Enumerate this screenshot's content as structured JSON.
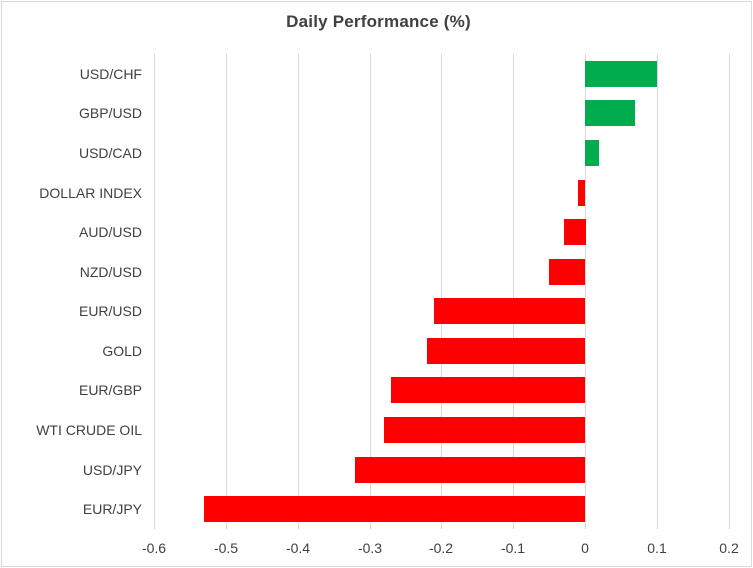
{
  "chart_data": {
    "type": "bar",
    "orientation": "horizontal",
    "title": "Daily Performance (%)",
    "categories": [
      "USD/CHF",
      "GBP/USD",
      "USD/CAD",
      "DOLLAR INDEX",
      "AUD/USD",
      "NZD/USD",
      "EUR/USD",
      "GOLD",
      "EUR/GBP",
      "WTI CRUDE OIL",
      "USD/JPY",
      "EUR/JPY"
    ],
    "values": [
      0.1,
      0.07,
      0.02,
      -0.01,
      -0.03,
      -0.05,
      -0.21,
      -0.22,
      -0.27,
      -0.28,
      -0.32,
      -0.53
    ],
    "xlim": [
      -0.6,
      0.2
    ],
    "x_ticks": [
      -0.6,
      -0.5,
      -0.4,
      -0.3,
      -0.2,
      -0.1,
      0,
      0.1,
      0.2
    ],
    "x_tick_labels": [
      "-0.6",
      "-0.5",
      "-0.4",
      "-0.3",
      "-0.2",
      "-0.1",
      "0",
      "0.1",
      "0.2"
    ],
    "grid": true,
    "legend": "none",
    "colors": {
      "positive": "#00AC4E",
      "negative": "#FF0000",
      "gridline": "#D9D9D9",
      "text": "#404040",
      "border": "#D9D9D9"
    }
  }
}
